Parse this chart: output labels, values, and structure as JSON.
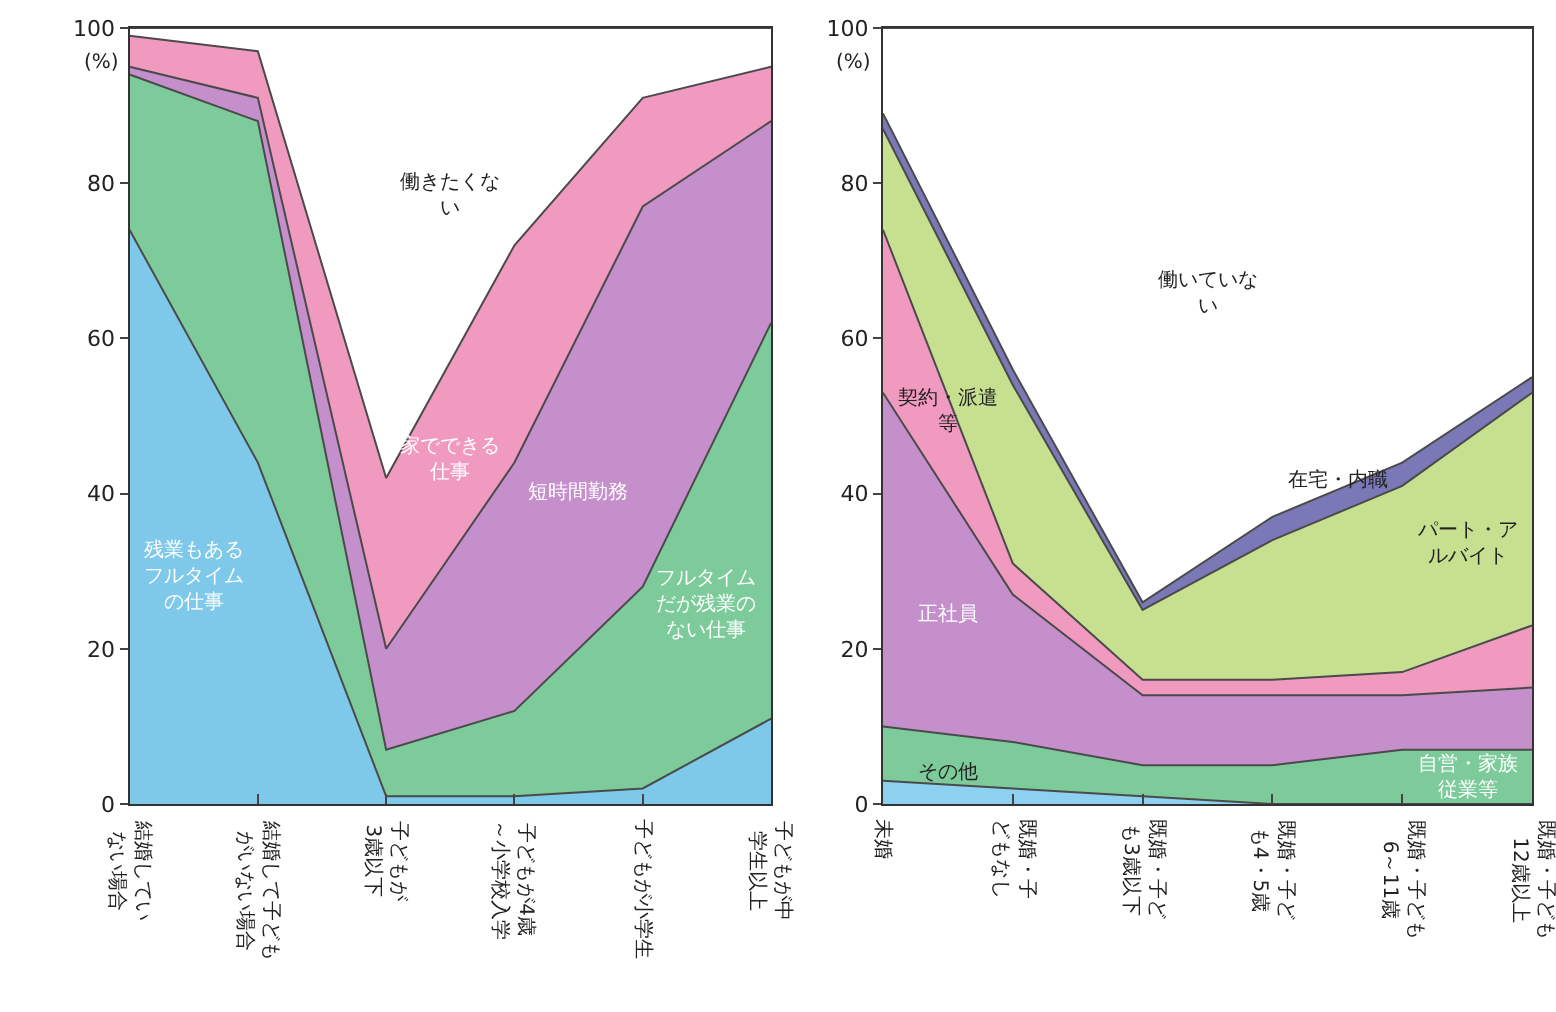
{
  "chart_data": [
    {
      "type": "area",
      "stacked": true,
      "ylabel": "(%)",
      "categories": [
        "結婚していない場合",
        "結婚して子どもがいない場合",
        "子どもが3歳以下",
        "子どもが4歳～小学校入学",
        "子どもが小学生",
        "子どもが中学生以上"
      ],
      "ylim": [
        0,
        100
      ],
      "yticks": [
        0,
        20,
        40,
        60,
        80,
        100
      ],
      "series": [
        {
          "name": "残業もあるフルタイムの仕事",
          "color": "#7ec8ea",
          "values": [
            74,
            44,
            1,
            1,
            2,
            11
          ]
        },
        {
          "name": "フルタイムだが残業のない仕事",
          "color": "#7dcb9a",
          "values": [
            20,
            44,
            6,
            11,
            26,
            51
          ]
        },
        {
          "name": "短時間勤務",
          "color": "#c58fcc",
          "values": [
            1,
            3,
            13,
            32,
            49,
            26
          ]
        },
        {
          "name": "家でできる仕事",
          "color": "#f19ac0",
          "values": [
            4,
            6,
            22,
            28,
            14,
            7
          ]
        },
        {
          "name": "働きたくない",
          "color": "#ffffff",
          "values": [
            1,
            3,
            58,
            28,
            9,
            5
          ]
        }
      ]
    },
    {
      "type": "area",
      "stacked": true,
      "ylabel": "(%)",
      "categories": [
        "未婚",
        "既婚・子どもなし",
        "既婚・子ども3歳以下",
        "既婚・子ども4・5歳",
        "既婚・子ども6～11歳",
        "既婚・子ども12歳以上"
      ],
      "ylim": [
        0,
        100
      ],
      "yticks": [
        0,
        20,
        40,
        60,
        80,
        100
      ],
      "series": [
        {
          "name": "その他",
          "color": "#8ed0ef",
          "values": [
            3,
            2,
            1,
            0,
            0,
            0
          ]
        },
        {
          "name": "自営・家族従業等",
          "color": "#7dcb9a",
          "values": [
            7,
            6,
            4,
            5,
            7,
            7
          ]
        },
        {
          "name": "正社員",
          "color": "#c58fcc",
          "values": [
            43,
            19,
            9,
            9,
            7,
            8
          ]
        },
        {
          "name": "契約・派遣等",
          "color": "#f19ac0",
          "values": [
            21,
            4,
            2,
            2,
            3,
            8
          ]
        },
        {
          "name": "パート・アルバイト",
          "color": "#c6e08f",
          "values": [
            13,
            23,
            9,
            18,
            24,
            30
          ]
        },
        {
          "name": "在宅・内職",
          "color": "#7b78b8",
          "values": [
            2,
            2,
            1,
            3,
            3,
            2
          ]
        },
        {
          "name": "働いていない",
          "color": "#ffffff",
          "values": [
            11,
            44,
            74,
            63,
            56,
            45
          ]
        }
      ]
    }
  ]
}
